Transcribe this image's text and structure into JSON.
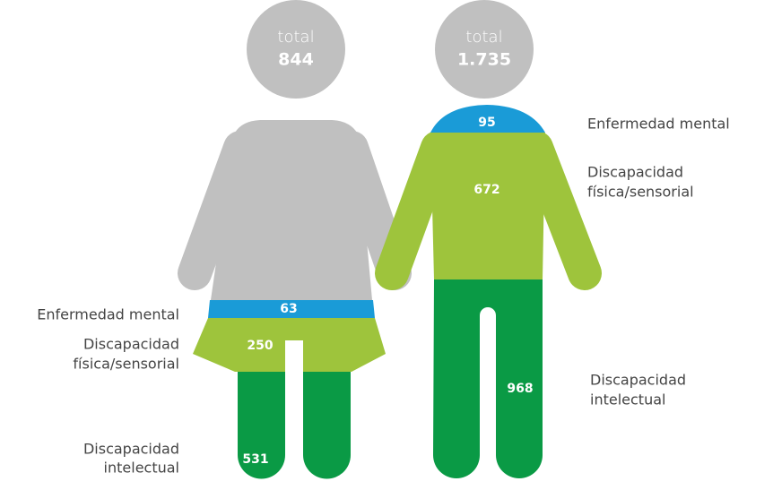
{
  "figures": [
    {
      "total_label": "total",
      "total": "844",
      "segments": [
        {
          "label": [
            "Enfermedad mental"
          ],
          "value": 63
        },
        {
          "label": [
            "Discapacidad",
            "física/sensorial"
          ],
          "value": 250
        },
        {
          "label": [
            "Discapacidad",
            "intelectual"
          ],
          "value": 531
        }
      ]
    },
    {
      "total_label": "total",
      "total": "1.735",
      "segments": [
        {
          "label": [
            "Enfermedad mental"
          ],
          "value": 95
        },
        {
          "label": [
            "Discapacidad",
            "física/sensorial"
          ],
          "value": 672
        },
        {
          "label": [
            "Discapacidad",
            "intelectual"
          ],
          "value": 968
        }
      ]
    }
  ]
}
